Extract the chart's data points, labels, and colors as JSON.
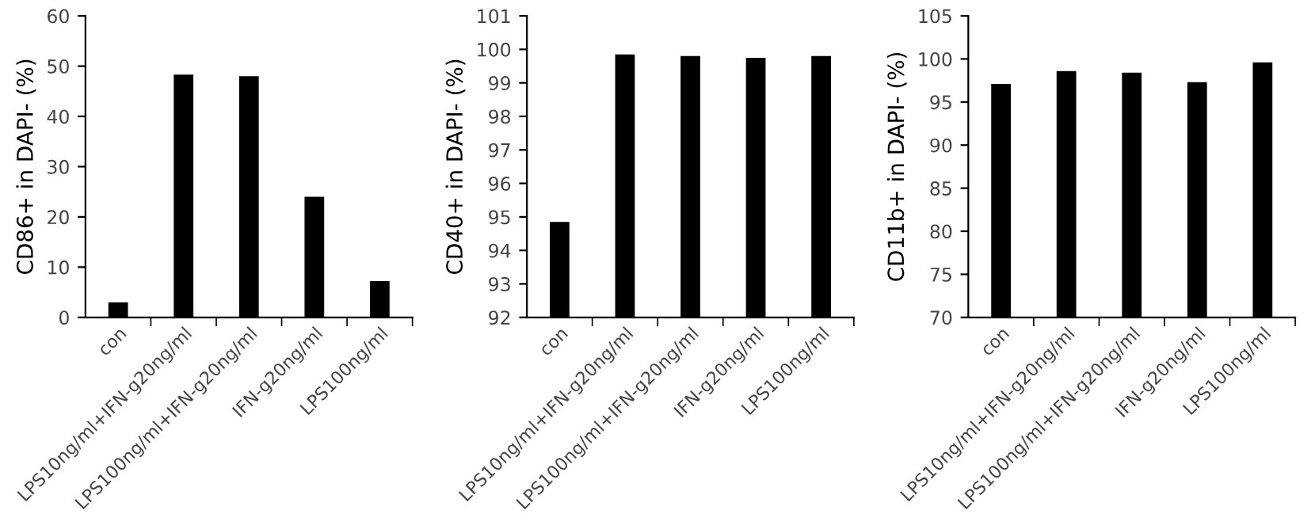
{
  "chart_data": [
    {
      "type": "bar",
      "ylabel": "CD86+ in DAPI- (%)",
      "categories": [
        "con",
        "LPS10ng/ml+IFN-g20ng/ml",
        "LPS100ng/ml+IFN-g20ng/ml",
        "IFN-g20ng/ml",
        "LPS100ng/ml"
      ],
      "values": [
        3,
        48.3,
        48,
        24,
        7.2
      ],
      "color": "#000000",
      "ylim": [
        0,
        60
      ],
      "yticks": [
        0,
        10,
        20,
        30,
        40,
        50,
        60
      ],
      "grid": false
    },
    {
      "type": "bar",
      "ylabel": "CD40+ in DAPI- (%)",
      "categories": [
        "con",
        "LPS10ng/ml+IFN-g20ng/ml",
        "LPS100ng/ml+IFN-g20ng/ml",
        "IFN-g20ng/ml",
        "LPS100ng/ml"
      ],
      "values": [
        94.85,
        99.85,
        99.8,
        99.75,
        99.8
      ],
      "color": "#000000",
      "ylim": [
        92,
        101
      ],
      "yticks": [
        92,
        93,
        94,
        95,
        96,
        97,
        98,
        99,
        100,
        101
      ],
      "grid": false
    },
    {
      "type": "bar",
      "ylabel": "CD11b+ in DAPI- (%)",
      "categories": [
        "con",
        "LPS10ng/ml+IFN-g20ng/ml",
        "LPS100ng/ml+IFN-g20ng/ml",
        "IFN-g20ng/ml",
        "LPS100ng/ml"
      ],
      "values": [
        97.1,
        98.6,
        98.4,
        97.3,
        99.6
      ],
      "color": "#000000",
      "ylim": [
        70,
        105
      ],
      "yticks": [
        70,
        75,
        80,
        85,
        90,
        95,
        100,
        105
      ],
      "grid": false
    }
  ]
}
